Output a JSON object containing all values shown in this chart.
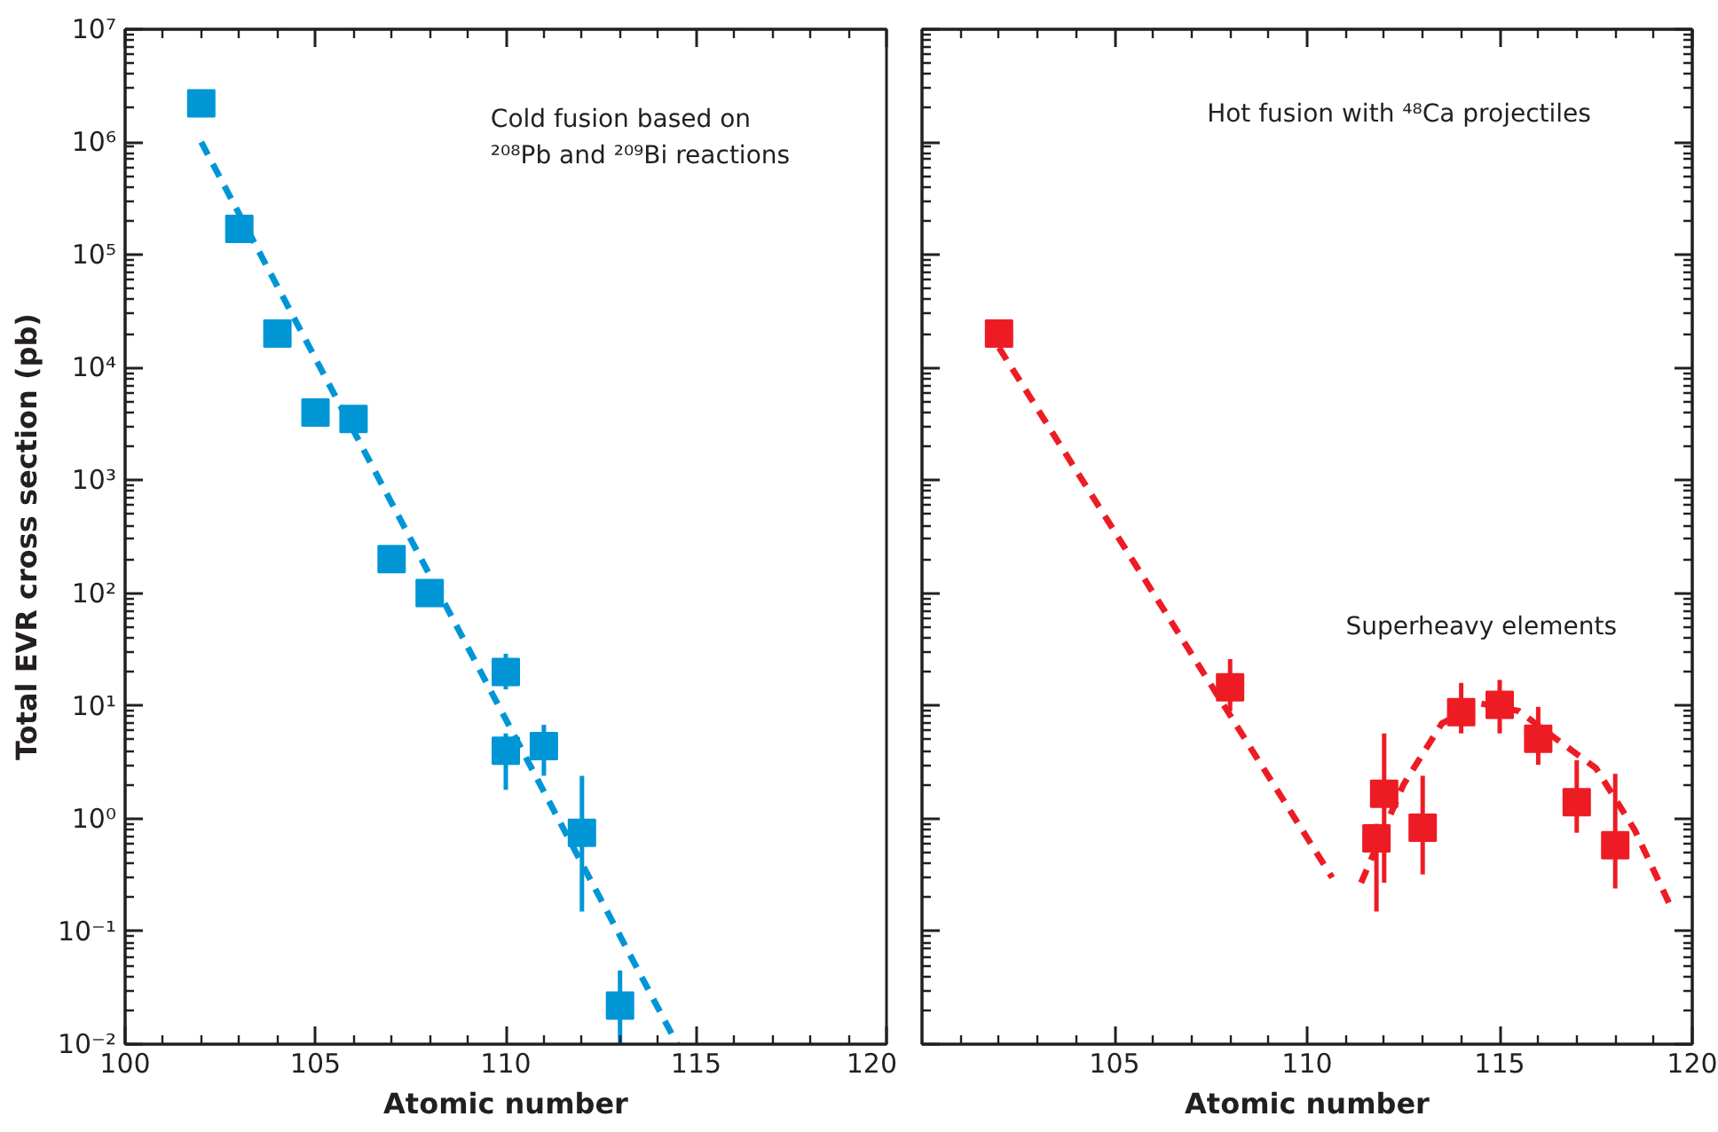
{
  "chart_data": [
    {
      "type": "scatter",
      "xlabel": "Atomic number",
      "ylabel": "Total EVR cross section (pb)",
      "log": "y",
      "grid": false,
      "marker": "square",
      "xlim": [
        100,
        120
      ],
      "xticks": [
        100,
        105,
        110,
        115,
        120
      ],
      "ylim": [
        0.01,
        10000000
      ],
      "yticks": [
        {
          "value": 0.01,
          "label": "10⁻²"
        },
        {
          "value": 0.1,
          "label": "10⁻¹"
        },
        {
          "value": 1,
          "label": "10⁰"
        },
        {
          "value": 10,
          "label": "10¹"
        },
        {
          "value": 100,
          "label": "10²"
        },
        {
          "value": 1000,
          "label": "10³"
        },
        {
          "value": 10000,
          "label": "10⁴"
        },
        {
          "value": 100000,
          "label": "10⁵"
        },
        {
          "value": 1000000,
          "label": "10⁶"
        },
        {
          "value": 10000000,
          "label": "10⁷"
        }
      ],
      "annotations": [
        "Cold fusion based on\n²⁰⁸Pb and ²⁰⁹Bi reactions"
      ],
      "series": [
        {
          "type": "line",
          "line_style": "dashed",
          "marker": "none",
          "color": "#0096d6",
          "x": [
            102,
            114.5
          ],
          "values": [
            1000000,
            0.01
          ]
        },
        {
          "type": "scatter",
          "color": "#0096d6",
          "x": [
            102,
            103,
            104,
            105,
            106,
            107,
            108,
            110,
            110,
            111,
            112,
            113
          ],
          "values": [
            2200000,
            170000,
            20000,
            4000,
            3500,
            200,
            100,
            20,
            4,
            4.4,
            0.75,
            0.022
          ],
          "errors": [
            null,
            null,
            null,
            null,
            null,
            null,
            null,
            [
              14,
              29
            ],
            [
              1.8,
              5.7
            ],
            [
              2.4,
              6.8
            ],
            [
              0.15,
              2.4
            ],
            [
              0.01,
              0.045
            ]
          ]
        }
      ]
    },
    {
      "type": "scatter",
      "xlabel": "Atomic number",
      "log": "y",
      "grid": false,
      "marker": "square",
      "tick_labels": "x",
      "xlim": [
        100,
        120
      ],
      "xticks": [
        105,
        110,
        115,
        120
      ],
      "ylim": [
        0.01,
        10000000
      ],
      "yticks": [
        {
          "value": 0.01,
          "label": null
        },
        {
          "value": 0.1,
          "label": null
        },
        {
          "value": 1,
          "label": null
        },
        {
          "value": 10,
          "label": null
        },
        {
          "value": 100,
          "label": null
        },
        {
          "value": 1000,
          "label": null
        },
        {
          "value": 10000,
          "label": null
        },
        {
          "value": 100000,
          "label": null
        },
        {
          "value": 1000000,
          "label": null
        },
        {
          "value": 10000000,
          "label": null
        }
      ],
      "annotations": [
        "Hot fusion with ⁴⁸Ca projectiles",
        "Superheavy elements"
      ],
      "series": [
        {
          "type": "line",
          "line_style": "dashed",
          "marker": "none",
          "color": "#ed1c24",
          "x": [
            102,
            110.65
          ],
          "values": [
            15000,
            0.3
          ]
        },
        {
          "type": "line",
          "line_style": "dashed",
          "marker": "none",
          "color": "#ed1c24",
          "x": [
            111.4,
            112.5,
            113.5,
            114.5,
            115.5,
            116.5,
            117.5,
            118.5,
            119.5
          ],
          "values": [
            0.27,
            2,
            7,
            10.5,
            9,
            5,
            2.8,
            0.8,
            0.15
          ]
        },
        {
          "type": "scatter",
          "color": "#ed1c24",
          "x": [
            102,
            108,
            111.8,
            112,
            113,
            114,
            115,
            116,
            117,
            118
          ],
          "values": [
            20000,
            14.6,
            0.67,
            1.66,
            0.83,
            8.8,
            10.2,
            5.1,
            1.4,
            0.58
          ],
          "errors": [
            null,
            [
              9,
              26
            ],
            [
              0.15,
              0.9
            ],
            [
              0.27,
              5.7
            ],
            [
              0.32,
              2.4
            ],
            [
              5.7,
              16
            ],
            [
              5.7,
              17
            ],
            [
              3,
              9.8
            ],
            [
              0.75,
              3.3
            ],
            [
              0.24,
              2.5
            ]
          ]
        }
      ]
    }
  ]
}
